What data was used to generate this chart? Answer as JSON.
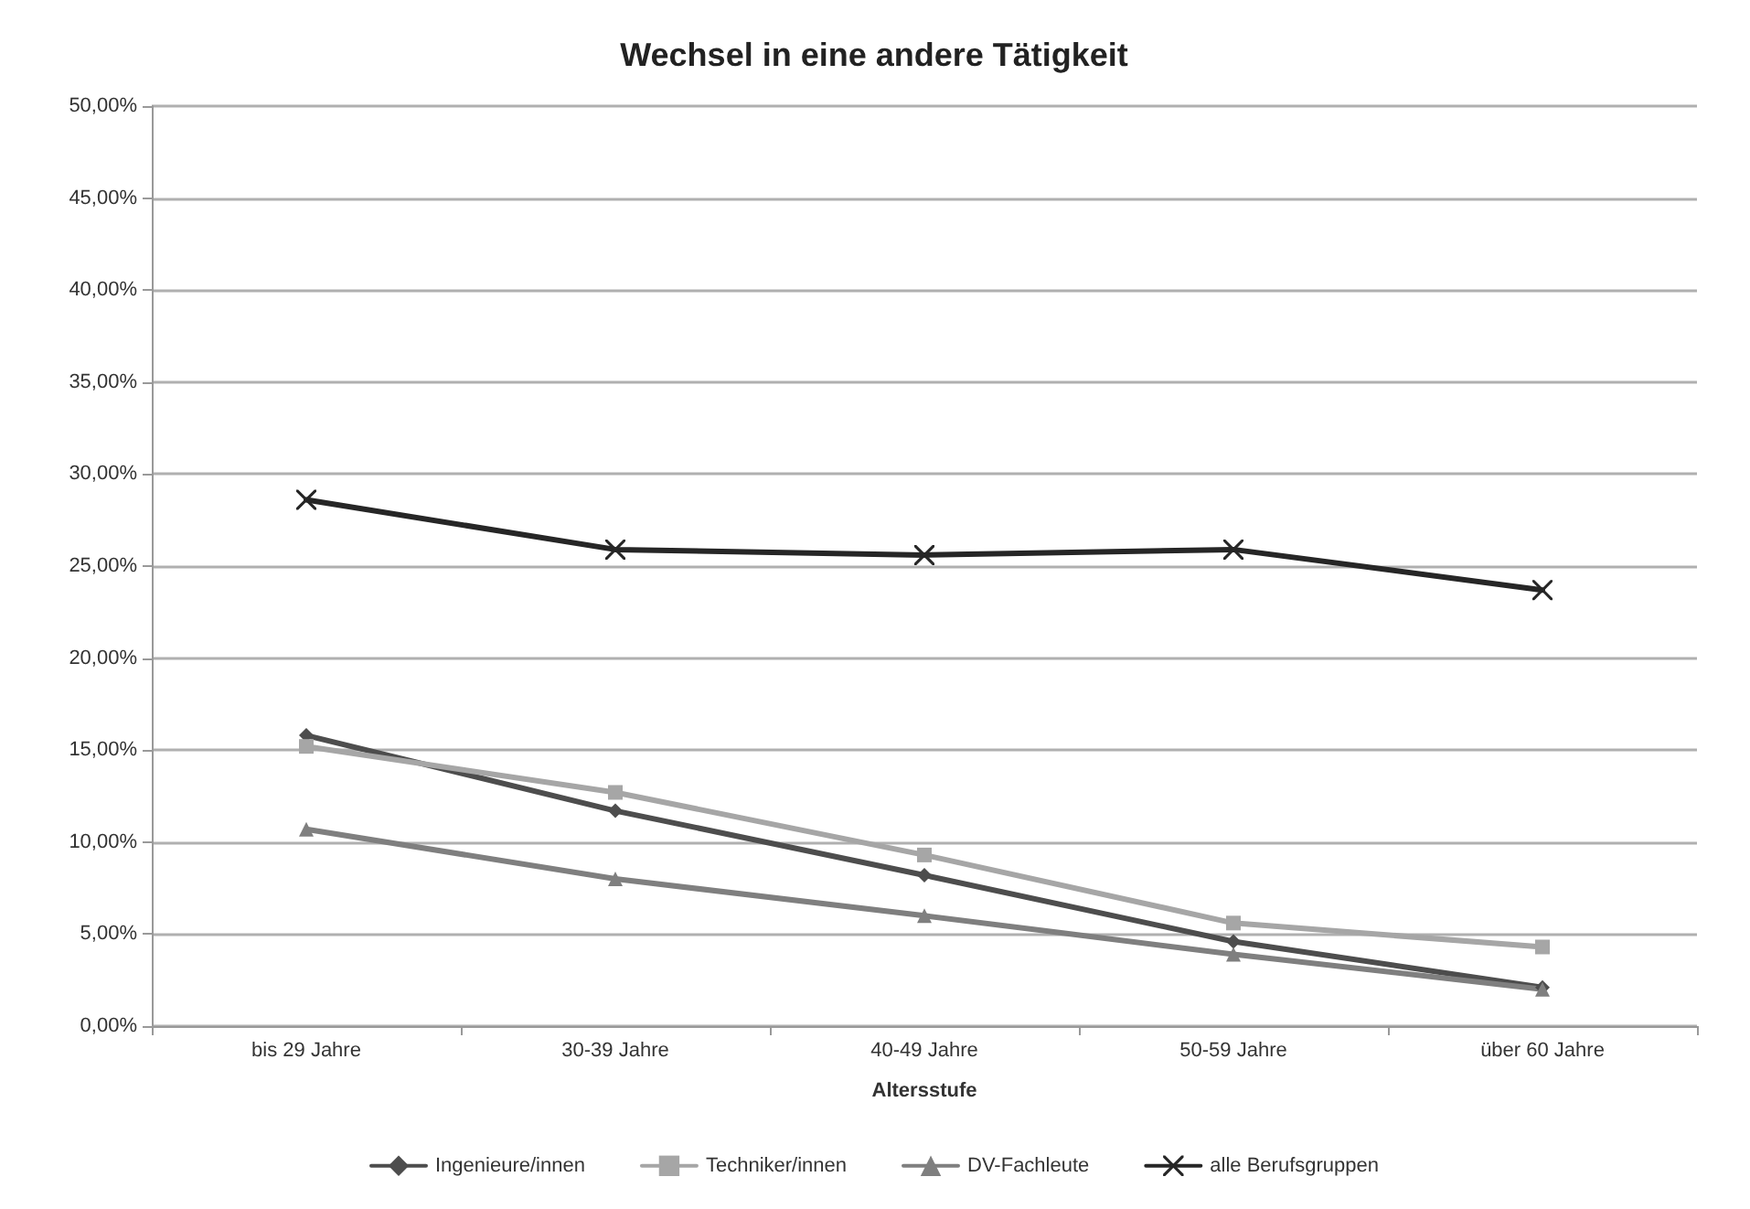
{
  "chart_data": {
    "type": "line",
    "title": "Wechsel in eine andere Tätigkeit",
    "xlabel": "Altersstufe",
    "categories": [
      "bis 29 Jahre",
      "30-39 Jahre",
      "40-49 Jahre",
      "50-59 Jahre",
      "über 60 Jahre"
    ],
    "series": [
      {
        "name": "Ingenieure/innen",
        "color": "#4d4d4d",
        "marker": "diamond",
        "values": [
          15.8,
          11.7,
          8.2,
          4.6,
          2.1
        ]
      },
      {
        "name": "Techniker/innen",
        "color": "#a6a6a6",
        "marker": "square",
        "values": [
          15.2,
          12.7,
          9.3,
          5.6,
          4.3
        ]
      },
      {
        "name": "DV-Fachleute",
        "color": "#7f7f7f",
        "marker": "triangle",
        "values": [
          10.7,
          8.0,
          6.0,
          3.9,
          2.0
        ]
      },
      {
        "name": "alle Berufsgruppen",
        "color": "#262626",
        "marker": "cross",
        "values": [
          28.6,
          25.9,
          25.6,
          25.9,
          23.7
        ]
      }
    ],
    "ylim": [
      0,
      50
    ],
    "yticks": [
      {
        "value": 0,
        "label": "0,00%"
      },
      {
        "value": 5,
        "label": "5,00%"
      },
      {
        "value": 10,
        "label": "10,00%"
      },
      {
        "value": 15,
        "label": "15,00%"
      },
      {
        "value": 20,
        "label": "20,00%"
      },
      {
        "value": 25,
        "label": "25,00%"
      },
      {
        "value": 30,
        "label": "30,00%"
      },
      {
        "value": 35,
        "label": "35,00%"
      },
      {
        "value": 40,
        "label": "40,00%"
      },
      {
        "value": 45,
        "label": "45,00%"
      },
      {
        "value": 50,
        "label": "50,00%"
      }
    ],
    "grid": "y",
    "legend": "bottom",
    "line_style": "solid"
  }
}
